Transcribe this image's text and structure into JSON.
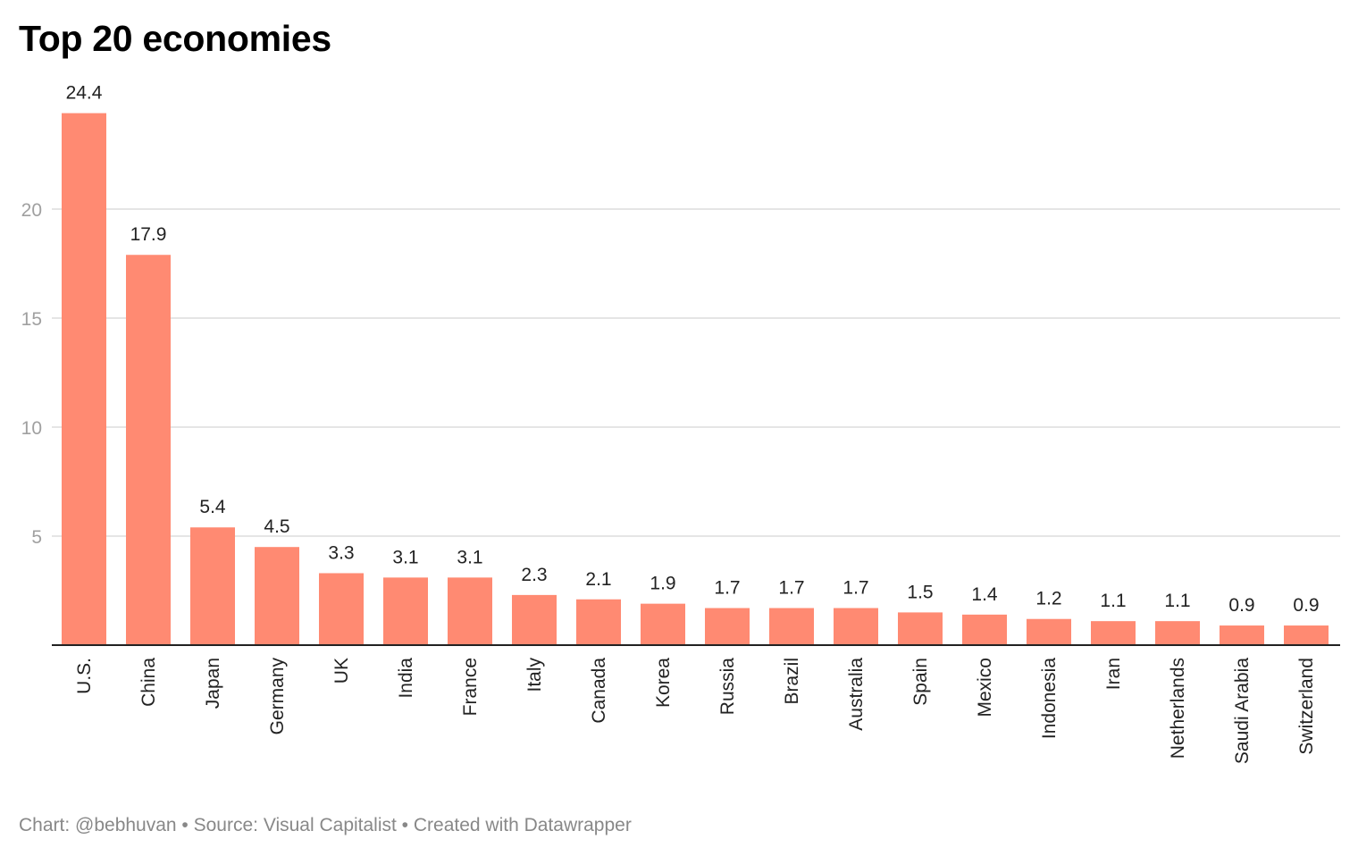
{
  "chart_data": {
    "type": "bar",
    "title": "Top 20 economies",
    "xlabel": "",
    "ylabel": "",
    "categories": [
      "U.S.",
      "China",
      "Japan",
      "Germany",
      "UK",
      "India",
      "France",
      "Italy",
      "Canada",
      "Korea",
      "Russia",
      "Brazil",
      "Australia",
      "Spain",
      "Mexico",
      "Indonesia",
      "Iran",
      "Netherlands",
      "Saudi Arabia",
      "Switzerland"
    ],
    "values": [
      24.4,
      17.9,
      5.4,
      4.5,
      3.3,
      3.1,
      3.1,
      2.3,
      2.1,
      1.9,
      1.7,
      1.7,
      1.7,
      1.5,
      1.4,
      1.2,
      1.1,
      1.1,
      0.9,
      0.9
    ],
    "value_labels": [
      "24.4",
      "17.9",
      "5.4",
      "4.5",
      "3.3",
      "3.1",
      "3.1",
      "2.3",
      "2.1",
      "1.9",
      "1.7",
      "1.7",
      "1.7",
      "1.5",
      "1.4",
      "1.2",
      "1.1",
      "1.1",
      "0.9",
      "0.9"
    ],
    "yticks": [
      5,
      10,
      15,
      20
    ],
    "ytick_labels": [
      "5",
      "10",
      "15",
      "20"
    ],
    "ylim": [
      0,
      24.4
    ],
    "grid": true,
    "legend": "none",
    "bar_color": "#ff8a72",
    "grid_color": "#e5e5e5",
    "axis_color": "#222222"
  },
  "footer": {
    "text": "Chart: @bebhuvan • Source: Visual Capitalist • Created with Datawrapper"
  }
}
